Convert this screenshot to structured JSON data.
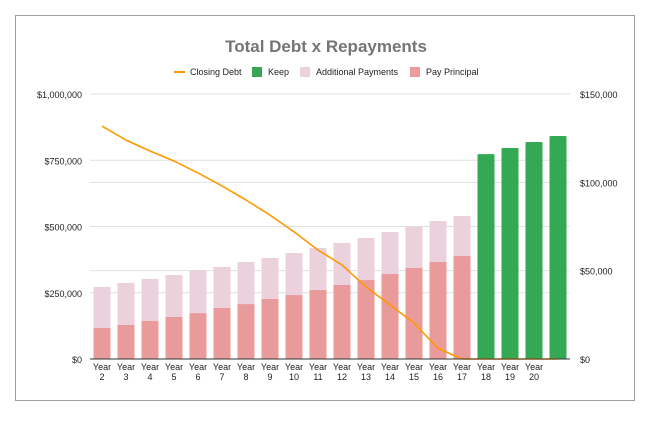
{
  "chart_data": {
    "type": "bar",
    "title": "Total Debt x Repayments",
    "categories": [
      "Year 2",
      "Year 3",
      "Year 4",
      "Year 5",
      "Year 6",
      "Year 7",
      "Year 8",
      "Year 9",
      "Year 10",
      "Year 11",
      "Year 12",
      "Year 13",
      "Year 14",
      "Year 15",
      "Year 16",
      "Year 17",
      "Year 18",
      "Year 19",
      "Year 20",
      ""
    ],
    "legend": [
      "Closing Debt",
      "Keep",
      "Additional Payments",
      "Pay Principal"
    ],
    "legend_position": "top",
    "series": [
      {
        "name": "Closing Debt",
        "type": "line",
        "axis": "left",
        "color": "#ff9900",
        "values": [
          879000,
          826000,
          785000,
          747000,
          702000,
          653000,
          600000,
          543000,
          480000,
          411000,
          355000,
          272000,
          204000,
          136000,
          40000,
          0,
          0,
          0,
          0,
          0
        ]
      },
      {
        "name": "Pay Principal",
        "type": "bar",
        "axis": "right",
        "color": "#e99a9a",
        "values": [
          17550,
          19250,
          21500,
          23800,
          26000,
          28900,
          31100,
          34000,
          36200,
          39100,
          41900,
          44700,
          48100,
          51500,
          54900,
          58300,
          0,
          0,
          0,
          0
        ]
      },
      {
        "name": "Additional Payments",
        "type": "bar",
        "axis": "right",
        "color": "#ead1dc",
        "values": [
          23200,
          23750,
          23800,
          23700,
          24400,
          23200,
          23800,
          23200,
          23800,
          23700,
          23800,
          23800,
          23800,
          23200,
          23200,
          22600,
          0,
          0,
          0,
          0
        ]
      },
      {
        "name": "Keep",
        "type": "bar",
        "axis": "right",
        "color": "#34a853",
        "values": [
          0,
          0,
          0,
          0,
          0,
          0,
          0,
          0,
          0,
          0,
          0,
          0,
          0,
          0,
          0,
          0,
          116000,
          119400,
          122800,
          126200
        ]
      }
    ],
    "left_axis": {
      "ylim": [
        0,
        1000000
      ],
      "ticks": [
        "$0",
        "$250,000",
        "$500,000",
        "$750,000",
        "$1,000,000"
      ]
    },
    "right_axis": {
      "ylim": [
        0,
        150000
      ],
      "ticks": [
        "$0",
        "$50,000",
        "$100,000",
        "$150,000"
      ]
    },
    "grid": true
  }
}
